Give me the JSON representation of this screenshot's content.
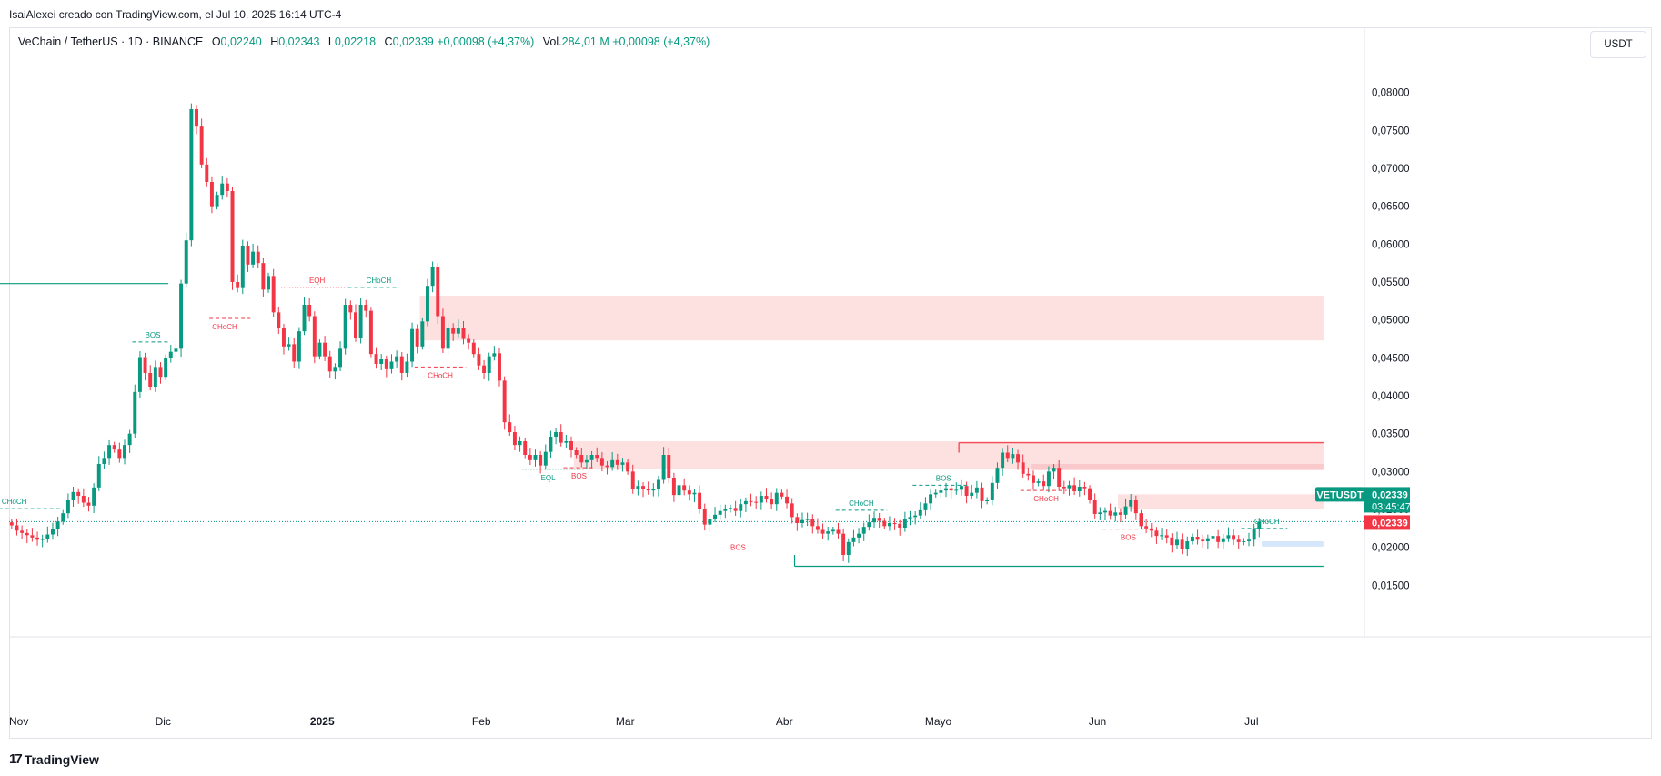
{
  "header": {
    "attribution": "IsaiAlexei creado con TradingView.com, el Jul 10, 2025 16:14 UTC-4"
  },
  "legend": {
    "symbol": "VeChain / TetherUS · 1D · BINANCE",
    "o_label": "O",
    "o_value": "0,02240",
    "h_label": "H",
    "h_value": "0,02343",
    "l_label": "L",
    "l_value": "0,02218",
    "c_label": "C",
    "c_value": "0,02339",
    "change": "+0,00098 (+4,37%)",
    "vol_label": "Vol.",
    "vol_value": "284,01 M",
    "vol_change": "+0,00098 (+4,37%)"
  },
  "currency_button": "USDT",
  "price_tag": {
    "ticker": "VETUSDT",
    "price": "0,02339",
    "countdown": "03:45:47",
    "red_price": "0,02339"
  },
  "footer": {
    "brand": "TradingView",
    "logo_glyph": "17"
  },
  "colors": {
    "up": "#089981",
    "down": "#f23645",
    "zone": "#fde0e0",
    "zone_dark": "#f9c9cc",
    "zone_blue": "#d6e6fb",
    "text": "#131722",
    "axis_text": "#131722",
    "border": "#e0e3eb"
  },
  "chart_data": {
    "type": "candlestick",
    "y_axis": {
      "ticks": [
        0.015,
        0.02,
        0.025,
        0.03,
        0.035,
        0.04,
        0.045,
        0.05,
        0.055,
        0.06,
        0.065,
        0.07,
        0.075,
        0.08
      ],
      "tick_labels": [
        "0,01500",
        "0,02000",
        "0,02500",
        "0,03000",
        "0,03500",
        "0,04000",
        "0,04500",
        "0,05000",
        "0,05500",
        "0,06000",
        "0,06500",
        "0,07000",
        "0,07500",
        "0,08000"
      ],
      "range": [
        0.0118,
        0.0838
      ],
      "side": "right"
    },
    "x_axis": {
      "labels": [
        {
          "day": 0,
          "text": "Nov",
          "bold": false
        },
        {
          "day": 30,
          "text": "Dic",
          "bold": false
        },
        {
          "day": 61,
          "text": "2025",
          "bold": true
        },
        {
          "day": 92,
          "text": "Feb",
          "bold": false
        },
        {
          "day": 120,
          "text": "Mar",
          "bold": false
        },
        {
          "day": 151,
          "text": "Abr",
          "bold": false
        },
        {
          "day": 181,
          "text": "Mayo",
          "bold": false
        },
        {
          "day": 212,
          "text": "Jun",
          "bold": false
        },
        {
          "day": 242,
          "text": "Jul",
          "bold": false
        }
      ],
      "range_days": [
        0,
        264
      ]
    },
    "closes": [
      0.0229,
      0.0222,
      0.0219,
      0.0216,
      0.0213,
      0.021,
      0.0211,
      0.0217,
      0.0224,
      0.0234,
      0.0245,
      0.0262,
      0.0273,
      0.0268,
      0.0259,
      0.0255,
      0.0279,
      0.031,
      0.0318,
      0.0335,
      0.0329,
      0.0318,
      0.0335,
      0.035,
      0.0405,
      0.0451,
      0.043,
      0.0412,
      0.0438,
      0.0425,
      0.045,
      0.0458,
      0.0462,
      0.0548,
      0.0605,
      0.0778,
      0.0755,
      0.0705,
      0.0682,
      0.065,
      0.0665,
      0.068,
      0.067,
      0.055,
      0.0542,
      0.0598,
      0.0573,
      0.059,
      0.0575,
      0.054,
      0.0558,
      0.051,
      0.049,
      0.0465,
      0.0468,
      0.0445,
      0.0485,
      0.052,
      0.0505,
      0.0452,
      0.047,
      0.0452,
      0.0432,
      0.0438,
      0.0462,
      0.052,
      0.051,
      0.0476,
      0.052,
      0.0512,
      0.0455,
      0.0442,
      0.0448,
      0.0435,
      0.0445,
      0.0452,
      0.043,
      0.0445,
      0.0488,
      0.0465,
      0.0498,
      0.0545,
      0.057,
      0.0505,
      0.0462,
      0.049,
      0.0482,
      0.049,
      0.0475,
      0.047,
      0.0455,
      0.044,
      0.043,
      0.0452,
      0.0456,
      0.042,
      0.0365,
      0.0352,
      0.0335,
      0.034,
      0.0322,
      0.0315,
      0.0322,
      0.0308,
      0.0326,
      0.0346,
      0.0352,
      0.0338,
      0.034,
      0.0328,
      0.0322,
      0.0312,
      0.0315,
      0.0322,
      0.0318,
      0.0308,
      0.0306,
      0.0315,
      0.0309,
      0.0312,
      0.03,
      0.0277,
      0.0281,
      0.0277,
      0.0275,
      0.0277,
      0.0289,
      0.0322,
      0.0292,
      0.0269,
      0.0282,
      0.0275,
      0.027,
      0.0272,
      0.025,
      0.023,
      0.0238,
      0.0243,
      0.0248,
      0.025,
      0.0252,
      0.0248,
      0.0257,
      0.0261,
      0.026,
      0.0259,
      0.0268,
      0.0264,
      0.0257,
      0.0272,
      0.0267,
      0.0258,
      0.024,
      0.0232,
      0.0236,
      0.0238,
      0.0228,
      0.0223,
      0.0218,
      0.0221,
      0.0223,
      0.0218,
      0.019,
      0.0207,
      0.0213,
      0.0218,
      0.0227,
      0.0233,
      0.0239,
      0.0235,
      0.0228,
      0.0232,
      0.0231,
      0.0226,
      0.0237,
      0.024,
      0.0242,
      0.0249,
      0.0258,
      0.027,
      0.0272,
      0.0275,
      0.0278,
      0.0275,
      0.0276,
      0.0281,
      0.0268,
      0.0272,
      0.0279,
      0.0261,
      0.0262,
      0.0285,
      0.0305,
      0.0325,
      0.0318,
      0.0323,
      0.0312,
      0.0297,
      0.0295,
      0.0285,
      0.0287,
      0.0281,
      0.03,
      0.0305,
      0.028,
      0.0278,
      0.0282,
      0.0274,
      0.028,
      0.0278,
      0.0262,
      0.0244,
      0.0246,
      0.0248,
      0.0242,
      0.0246,
      0.0243,
      0.0254,
      0.0262,
      0.0245,
      0.0228,
      0.0225,
      0.0222,
      0.0215,
      0.0216,
      0.0213,
      0.0203,
      0.021,
      0.0198,
      0.0208,
      0.0214,
      0.021,
      0.0208,
      0.0212,
      0.0215,
      0.0207,
      0.0212,
      0.0216,
      0.021,
      0.0207,
      0.0208,
      0.021,
      0.0224,
      0.0234
    ],
    "wick_pad": 0.0007,
    "last_price_line": 0.02339,
    "lines": [
      {
        "from_day": -2,
        "to_day": 31,
        "y": 0.0548,
        "color": "up",
        "dashed": false
      },
      {
        "from_day": 153,
        "to_day": 256,
        "y": 0.0175,
        "color": "up",
        "dashed": false
      },
      {
        "from_day": 185,
        "to_day": 256,
        "y": 0.0338,
        "color": "down",
        "dashed": false
      }
    ],
    "zones": [
      {
        "from_day": 80,
        "to_day": 256,
        "y1": 0.0473,
        "y2": 0.0532,
        "tone": "zone"
      },
      {
        "from_day": 110,
        "to_day": 256,
        "y1": 0.0304,
        "y2": 0.034,
        "tone": "zone"
      },
      {
        "from_day": 199,
        "to_day": 256,
        "y1": 0.0302,
        "y2": 0.031,
        "tone": "zone_dark"
      },
      {
        "from_day": 216,
        "to_day": 256,
        "y1": 0.025,
        "y2": 0.027,
        "tone": "zone"
      },
      {
        "from_day": 244,
        "to_day": 256,
        "y1": 0.0201,
        "y2": 0.0208,
        "tone": "zone_blue"
      }
    ],
    "annotations": [
      {
        "text": "BOS",
        "day": 28,
        "y": 0.0471,
        "line_from": 24,
        "line_to": 31,
        "color": "up",
        "label_above": true
      },
      {
        "text": "CHoCH",
        "day": 42,
        "y": 0.0502,
        "line_from": 39,
        "line_to": 47,
        "color": "down",
        "label_above": false
      },
      {
        "text": "EQH",
        "day": 60,
        "y": 0.0543,
        "line_from": 53,
        "line_to": 66,
        "color": "down",
        "label_above": true,
        "dotted": true
      },
      {
        "text": "CHoCH",
        "day": 72,
        "y": 0.0543,
        "line_from": 66,
        "line_to": 76,
        "color": "up",
        "label_above": true
      },
      {
        "text": "CHoCH",
        "day": 84,
        "y": 0.0438,
        "line_from": 79,
        "line_to": 89,
        "color": "down",
        "label_above": false
      },
      {
        "text": "EQL",
        "day": 105,
        "y": 0.0303,
        "line_from": 100,
        "line_to": 112,
        "color": "up",
        "label_above": false,
        "dotted": true
      },
      {
        "text": "BOS",
        "day": 111,
        "y": 0.0305,
        "line_from": 108,
        "line_to": 114,
        "color": "down",
        "label_above": false
      },
      {
        "text": "BOS",
        "day": 142,
        "y": 0.0211,
        "line_from": 129,
        "line_to": 153,
        "color": "down",
        "label_above": false
      },
      {
        "text": "CHoCH",
        "day": 166,
        "y": 0.0249,
        "line_from": 161,
        "line_to": 171,
        "color": "up",
        "label_above": true
      },
      {
        "text": "BOS",
        "day": 182,
        "y": 0.0282,
        "line_from": 176,
        "line_to": 187,
        "color": "up",
        "label_above": true
      },
      {
        "text": "CHoCH",
        "day": 202,
        "y": 0.0275,
        "line_from": 197,
        "line_to": 206,
        "color": "down",
        "label_above": false
      },
      {
        "text": "BOS",
        "day": 218,
        "y": 0.0224,
        "line_from": 213,
        "line_to": 222,
        "color": "down",
        "label_above": false
      },
      {
        "text": "CHoCH",
        "day": 245,
        "y": 0.0225,
        "line_from": 240,
        "line_to": 249,
        "color": "up",
        "label_above": true
      },
      {
        "text": "CHoCH",
        "day": 1,
        "y": 0.0251,
        "line_from": -2,
        "line_to": 10,
        "color": "up",
        "label_above": true
      }
    ]
  }
}
